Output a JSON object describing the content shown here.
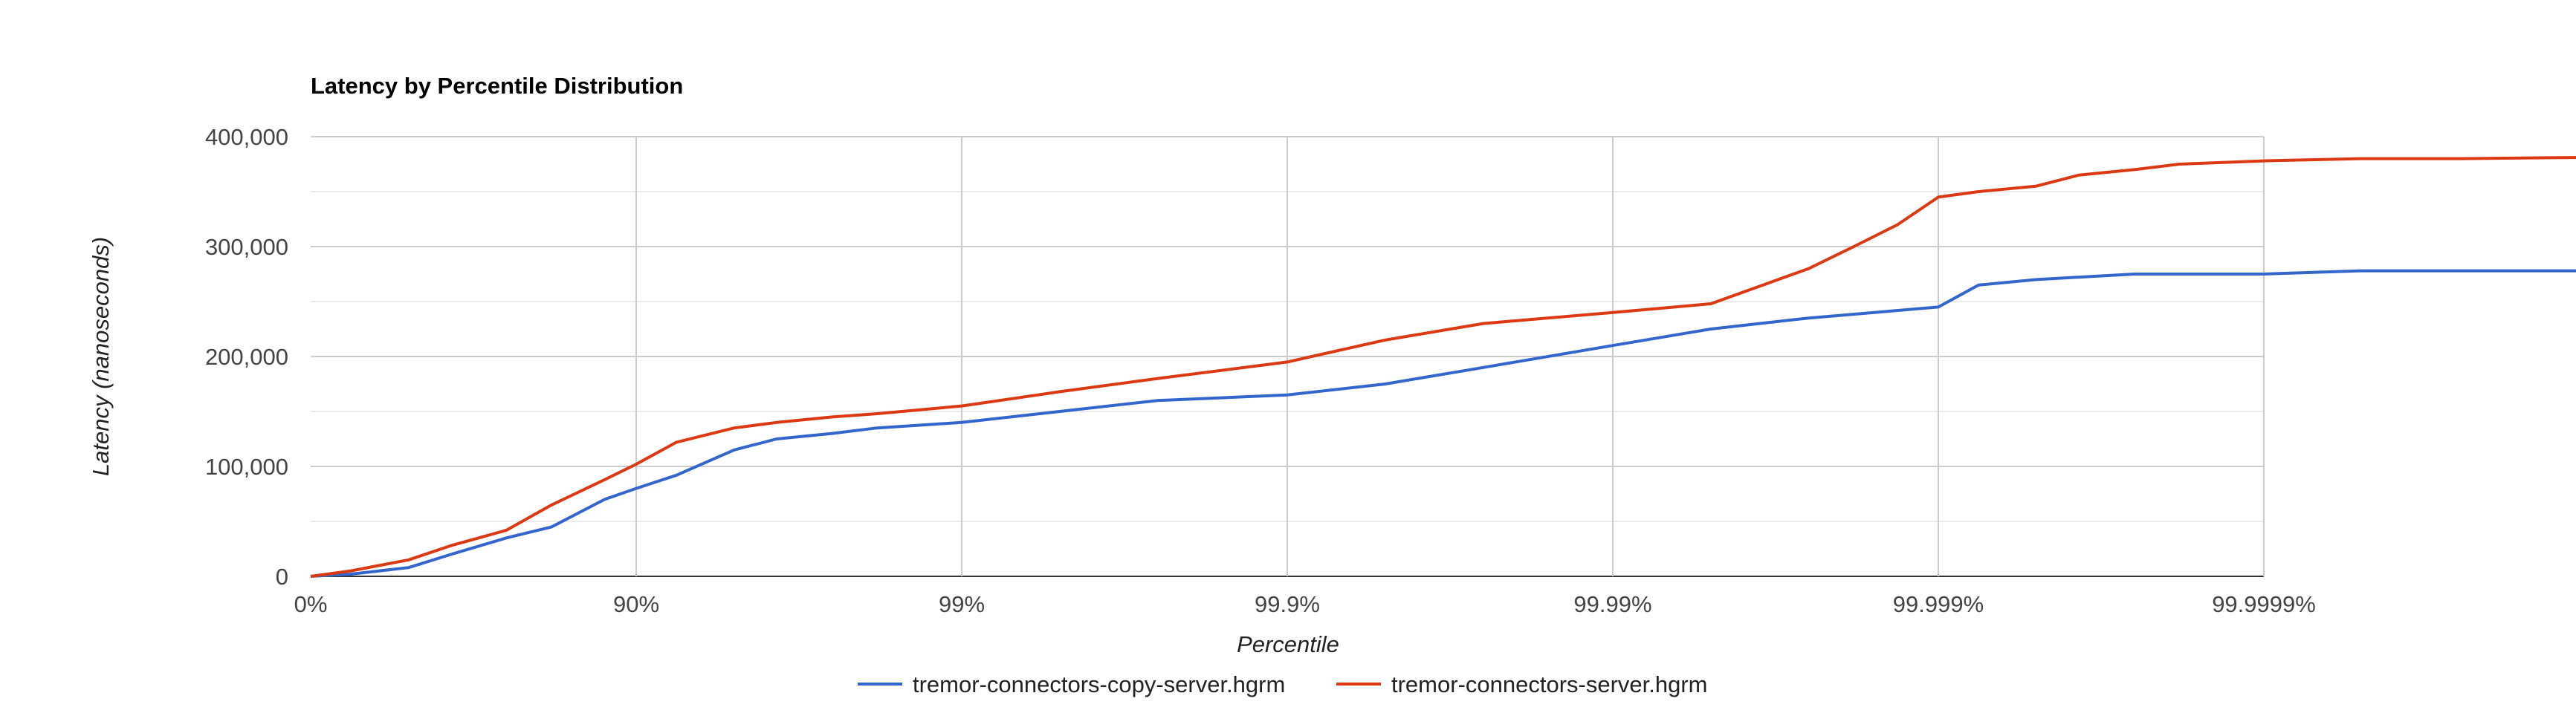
{
  "chart_data": {
    "type": "line",
    "title": "Latency by Percentile Distribution",
    "xlabel": "Percentile",
    "ylabel": "Latency (nanoseconds)",
    "x_scale": "log percentile (1/(1-p))",
    "x_ticks": [
      "0%",
      "90%",
      "99%",
      "99.9%",
      "99.99%",
      "99.999%",
      "99.9999%"
    ],
    "x_tick_values": [
      1,
      10,
      100,
      1000,
      10000,
      100000,
      1000000
    ],
    "xlim": [
      1,
      60000000
    ],
    "ylim": [
      0,
      400000
    ],
    "y_ticks": [
      "0",
      "100,000",
      "200,000",
      "300,000",
      "400,000"
    ],
    "y_tick_values": [
      0,
      100000,
      200000,
      300000,
      400000
    ],
    "grid": true,
    "legend_position": "bottom",
    "series": [
      {
        "name": "tremor-connectors-copy-server.hgrm",
        "color": "#3366cc",
        "x": [
          1,
          1.33,
          2.0,
          2.7,
          4.0,
          5.5,
          8.0,
          10.0,
          13.3,
          20.0,
          27.0,
          40.0,
          55.0,
          100,
          200,
          400,
          1000,
          2000,
          4000,
          10000,
          20000,
          40000,
          100000,
          133000,
          200000,
          400000,
          1000000,
          2000000,
          4000000,
          20000000,
          60000000
        ],
        "values": [
          0,
          2000,
          8000,
          20000,
          35000,
          45000,
          70000,
          80000,
          92000,
          115000,
          125000,
          130000,
          135000,
          140000,
          150000,
          160000,
          165000,
          175000,
          190000,
          210000,
          225000,
          235000,
          245000,
          265000,
          270000,
          275000,
          275000,
          278000,
          278000,
          278000,
          281000
        ]
      },
      {
        "name": "tremor-connectors-server.hgrm",
        "color": "#dc3912",
        "x": [
          1,
          1.33,
          2.0,
          2.7,
          4.0,
          5.5,
          8.0,
          10.0,
          13.3,
          20.0,
          27.0,
          40.0,
          55.0,
          100,
          200,
          400,
          1000,
          2000,
          4000,
          10000,
          20000,
          40000,
          55000,
          75000,
          100000,
          133000,
          200000,
          270000,
          400000,
          550000,
          1000000,
          2000000,
          4000000,
          20000000,
          60000000
        ],
        "values": [
          0,
          5000,
          15000,
          28000,
          42000,
          65000,
          88000,
          102000,
          122000,
          135000,
          140000,
          145000,
          148000,
          155000,
          168000,
          180000,
          195000,
          215000,
          230000,
          240000,
          248000,
          280000,
          300000,
          320000,
          345000,
          350000,
          355000,
          365000,
          370000,
          375000,
          378000,
          380000,
          380000,
          382000,
          383000
        ]
      }
    ]
  }
}
